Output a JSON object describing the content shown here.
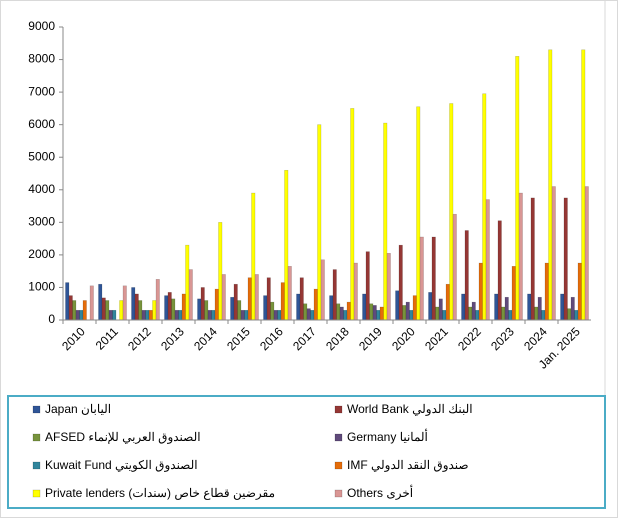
{
  "chart_data": {
    "type": "bar",
    "categories": [
      "2010",
      "2011",
      "2012",
      "2013",
      "2014",
      "2015",
      "2016",
      "2017",
      "2018",
      "2019",
      "2020",
      "2021",
      "2022",
      "2023",
      "2024",
      "Jan. 2025"
    ],
    "series": [
      {
        "name": "Japan اليابان",
        "color": "#2f5597",
        "values": [
          1150,
          1100,
          1000,
          750,
          650,
          700,
          750,
          800,
          750,
          800,
          900,
          850,
          800,
          800,
          800,
          800
        ]
      },
      {
        "name": "World Bank البنك الدولي",
        "color": "#953735",
        "values": [
          750,
          680,
          800,
          850,
          1000,
          1100,
          1300,
          1300,
          1550,
          2100,
          2300,
          2550,
          2750,
          3050,
          3750,
          3750
        ]
      },
      {
        "name": "AFSED الصندوق العربي للإنماء",
        "color": "#77933c",
        "values": [
          600,
          600,
          600,
          650,
          600,
          600,
          550,
          500,
          500,
          500,
          450,
          400,
          400,
          400,
          400,
          350
        ]
      },
      {
        "name": "Germany ألمانيا",
        "color": "#604a7b",
        "values": [
          300,
          300,
          300,
          300,
          300,
          300,
          300,
          350,
          400,
          450,
          550,
          650,
          550,
          700,
          700,
          700
        ]
      },
      {
        "name": "Kuwait Fund الصندوق الكويتي",
        "color": "#31859c",
        "values": [
          300,
          300,
          300,
          300,
          300,
          300,
          300,
          300,
          300,
          300,
          300,
          300,
          300,
          300,
          300,
          300
        ]
      },
      {
        "name": "IMF صندوق النقد الدولي",
        "color": "#e46c0a",
        "values": [
          600,
          0,
          300,
          800,
          950,
          1300,
          1150,
          950,
          550,
          400,
          750,
          1100,
          1750,
          1650,
          1750,
          1750
        ]
      },
      {
        "name": "Private lenders (سندات) مقرضين قطاع خاص",
        "color": "#ffff00",
        "values": [
          0,
          600,
          600,
          2300,
          3000,
          3900,
          4600,
          6000,
          6500,
          6050,
          6550,
          6650,
          6950,
          8100,
          8300,
          8300
        ]
      },
      {
        "name": "Others أخرى",
        "color": "#d99694",
        "values": [
          1050,
          1050,
          1250,
          1550,
          1400,
          1400,
          1650,
          1850,
          1750,
          2050,
          2550,
          3250,
          3700,
          3900,
          4100,
          4100
        ]
      }
    ],
    "ylim": [
      0,
      9000
    ],
    "yticks": [
      0,
      1000,
      2000,
      3000,
      4000,
      5000,
      6000,
      7000,
      8000,
      9000
    ],
    "grid": false,
    "legend": "bottom"
  }
}
